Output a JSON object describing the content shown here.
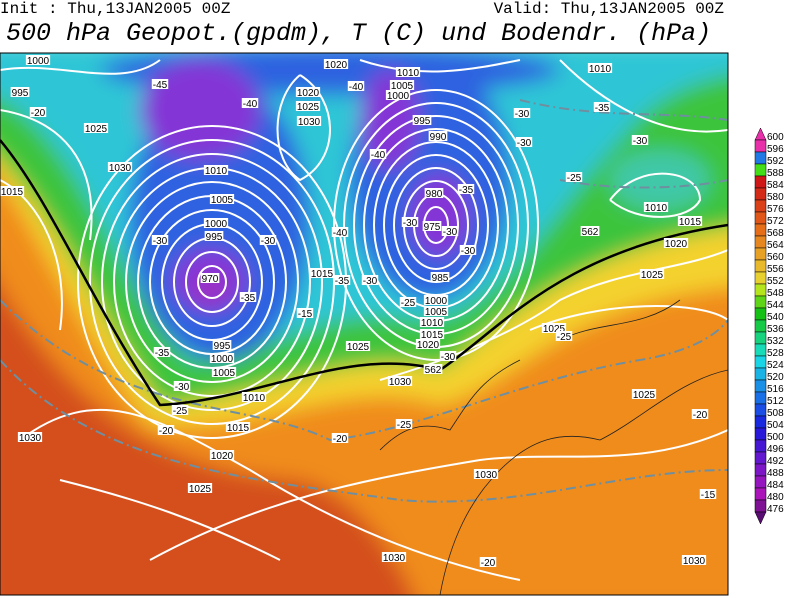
{
  "header": {
    "init": "Init : Thu,13JAN2005 00Z",
    "valid": "Valid: Thu,13JAN2005 00Z",
    "title": "500 hPa Geopot.(gpdm), T (C) und Bodendr. (hPa)"
  },
  "map": {
    "contour_labels": [
      "1000",
      "995",
      "-20",
      "1025",
      "1030",
      "1015",
      "-45",
      "-40",
      "1020",
      "1020",
      "1025",
      "1030",
      "1010",
      "1005",
      "-30",
      "1000",
      "995",
      "970",
      "-35",
      "-30",
      "-40",
      "1015",
      "-35",
      "-15",
      "995",
      "1000",
      "1005",
      "-35",
      "-30",
      "-25",
      "1010",
      "1015",
      "1020",
      "1025",
      "1030",
      "-20",
      "-20",
      "-25",
      "1030",
      "1025",
      "1020",
      "-30",
      "562",
      "1010",
      "1005",
      "1000",
      "-40",
      "995",
      "990",
      "-40",
      "-30",
      "-30",
      "-35",
      "-30",
      "-25",
      "1010",
      "980",
      "975",
      "-30",
      "-35",
      "-30",
      "-30",
      "985",
      "1000",
      "1005",
      "1010",
      "1015",
      "-25",
      "-30",
      "1010",
      "1015",
      "1020",
      "1025",
      "562",
      "1025",
      "-25",
      "1025",
      "-20",
      "1030",
      "-15",
      "-20",
      "1030",
      "1030"
    ]
  },
  "colorbar": {
    "labels": [
      "600",
      "596",
      "592",
      "588",
      "584",
      "580",
      "576",
      "572",
      "568",
      "564",
      "560",
      "556",
      "552",
      "548",
      "544",
      "540",
      "536",
      "532",
      "528",
      "524",
      "520",
      "516",
      "512",
      "508",
      "504",
      "500",
      "496",
      "492",
      "488",
      "484",
      "480",
      "476"
    ]
  }
}
